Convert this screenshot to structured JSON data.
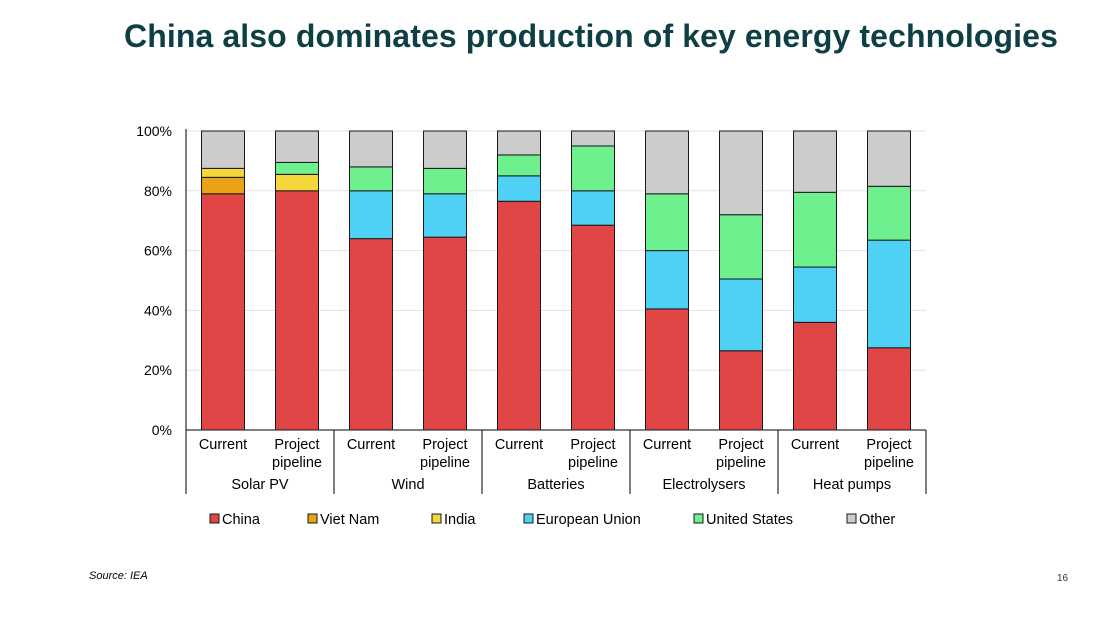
{
  "slide": {
    "title": "China also dominates production of key energy technologies",
    "source": "Source: IEA",
    "page_number": "16"
  },
  "chart_data": {
    "type": "bar",
    "stacked": true,
    "title": "",
    "xlabel": "",
    "ylabel": "",
    "ylim": [
      0,
      100
    ],
    "y_ticks": [
      "0%",
      "20%",
      "40%",
      "60%",
      "80%",
      "100%"
    ],
    "grid": true,
    "legend_position": "bottom",
    "groups": [
      {
        "name": "Solar PV",
        "categories": [
          "Current",
          "Project pipeline"
        ]
      },
      {
        "name": "Wind",
        "categories": [
          "Current",
          "Project pipeline"
        ]
      },
      {
        "name": "Batteries",
        "categories": [
          "Current",
          "Project pipeline"
        ]
      },
      {
        "name": "Electrolysers",
        "categories": [
          "Current",
          "Project pipeline"
        ]
      },
      {
        "name": "Heat pumps",
        "categories": [
          "Current",
          "Project pipeline"
        ]
      }
    ],
    "categories": [
      "Solar PV - Current",
      "Solar PV - Project pipeline",
      "Wind - Current",
      "Wind - Project pipeline",
      "Batteries - Current",
      "Batteries - Project pipeline",
      "Electrolysers - Current",
      "Electrolysers - Project pipeline",
      "Heat pumps - Current",
      "Heat pumps - Project pipeline"
    ],
    "series": [
      {
        "name": "China",
        "color": "#e04646",
        "values": [
          79,
          80,
          64,
          64.5,
          76.5,
          68.5,
          40.5,
          26.5,
          36,
          27.5
        ]
      },
      {
        "name": "Viet Nam",
        "color": "#e8a317",
        "values": [
          5.5,
          0,
          0,
          0,
          0,
          0,
          0,
          0,
          0,
          0
        ]
      },
      {
        "name": "India",
        "color": "#f5d63d",
        "values": [
          3,
          5.5,
          0,
          0,
          0,
          0,
          0,
          0,
          0,
          0
        ]
      },
      {
        "name": "European Union",
        "color": "#4fd0f5",
        "values": [
          0,
          0,
          16,
          14.5,
          8.5,
          11.5,
          19.5,
          24,
          18.5,
          36
        ]
      },
      {
        "name": "United States",
        "color": "#6ef08e",
        "values": [
          0,
          4,
          8,
          8.5,
          7,
          15,
          19,
          21.5,
          25,
          18
        ]
      },
      {
        "name": "Other",
        "color": "#cccccc",
        "values": [
          12.5,
          10.5,
          12,
          12.5,
          8,
          5,
          21,
          28,
          20.5,
          18.5
        ]
      }
    ]
  }
}
